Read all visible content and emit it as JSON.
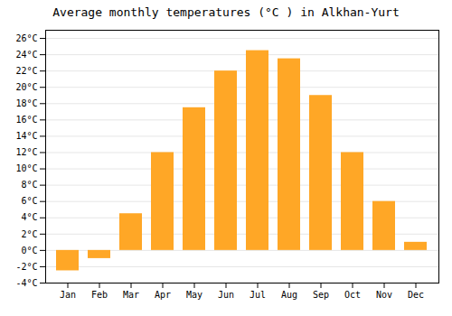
{
  "chart_data": {
    "type": "bar",
    "title": "Average monthly temperatures (°C ) in Alkhan-Yurt",
    "categories": [
      "Jan",
      "Feb",
      "Mar",
      "Apr",
      "May",
      "Jun",
      "Jul",
      "Aug",
      "Sep",
      "Oct",
      "Nov",
      "Dec"
    ],
    "values": [
      -2.5,
      -1.0,
      4.5,
      12.0,
      17.5,
      22.0,
      24.5,
      23.5,
      19.0,
      12.0,
      6.0,
      1.0
    ],
    "color": "#FFA726",
    "ylim": [
      -4,
      27
    ],
    "yticks": [
      {
        "value": -4,
        "label": "-4°C"
      },
      {
        "value": -2,
        "label": "-2°C"
      },
      {
        "value": 0,
        "label": "0°C"
      },
      {
        "value": 2,
        "label": "2°C"
      },
      {
        "value": 4,
        "label": "4°C"
      },
      {
        "value": 6,
        "label": "6°C"
      },
      {
        "value": 8,
        "label": "8°C"
      },
      {
        "value": 10,
        "label": "10°C"
      },
      {
        "value": 12,
        "label": "12°C"
      },
      {
        "value": 14,
        "label": "14°C"
      },
      {
        "value": 16,
        "label": "16°C"
      },
      {
        "value": 18,
        "label": "18°C"
      },
      {
        "value": 20,
        "label": "20°C"
      },
      {
        "value": 22,
        "label": "22°C"
      },
      {
        "value": 24,
        "label": "24°C"
      },
      {
        "value": 26,
        "label": "26°C"
      }
    ],
    "grid": true
  }
}
